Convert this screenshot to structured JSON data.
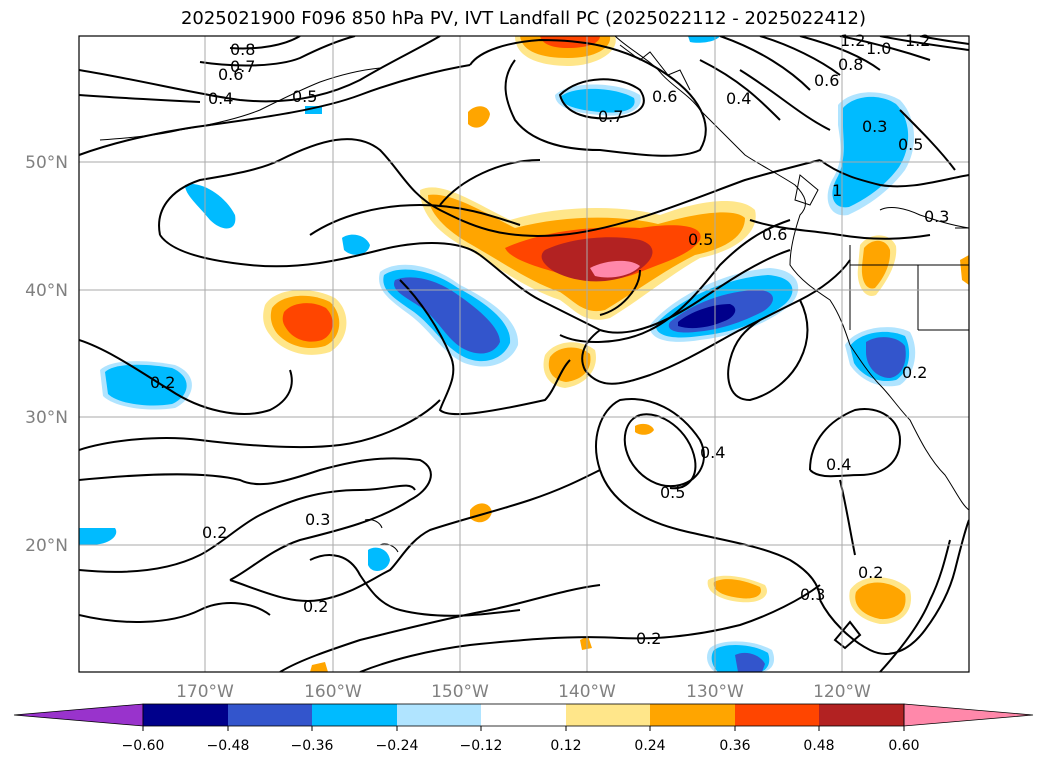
{
  "title": "2025021900 F096 850 hPa PV, IVT Landfall PC (2025022112 - 2025022412)",
  "map": {
    "lat_labels": [
      "50°N",
      "40°N",
      "30°N",
      "20°N"
    ],
    "lon_labels": [
      "170°W",
      "160°W",
      "150°W",
      "140°W",
      "130°W",
      "120°W"
    ],
    "contour_labels": [
      "0.8",
      "0.7",
      "0.6",
      "0.4",
      "0.5",
      "1.2",
      "1.0",
      "1.2",
      "0.8",
      "0.6",
      "0.6",
      "0.4",
      "0.7",
      "0.3",
      "0.5",
      "1",
      "0.3",
      "0.6",
      "0.5",
      "0.2",
      "0.2",
      "0.4",
      "0.5",
      "0.4",
      "0.2",
      "0.3",
      "0.2",
      "0.3",
      "0.2",
      "0.2"
    ]
  },
  "colorbar": {
    "ticks": [
      "−0.60",
      "−0.48",
      "−0.36",
      "−0.24",
      "−0.12",
      "0.12",
      "0.24",
      "0.36",
      "0.48",
      "0.60"
    ],
    "colors": [
      "#9933cc",
      "#00008b",
      "#3355cc",
      "#00bbff",
      "#b0e4ff",
      "#ffffff",
      "#ffe68a",
      "#ffa500",
      "#ff4500",
      "#b22222",
      "#ff88aa"
    ]
  }
}
